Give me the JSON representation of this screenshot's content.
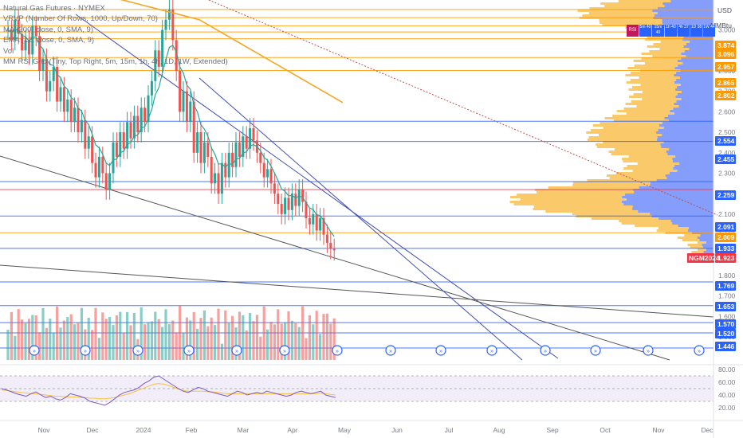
{
  "legend": {
    "lines": [
      "Natural Gas Futures · NYMEX",
      "VRVP (Number Of Rows, 1000, Up/Down, 70)",
      "MA (200, close, 0, SMA, 9)",
      "EMA (12, close, 0, SMA, 9)",
      "Vol",
      "MM RSI Grid (Tiny, Top Right, 5m, 15m, 1h, 4h, 1D, 1W, Extended)"
    ]
  },
  "units": {
    "currency": "USD",
    "unit": "MMBtu"
  },
  "rsi_grid": {
    "labels": [
      "RSI",
      "5m 40",
      "15m 40",
      "1h 40",
      "4h 37",
      "1D 38",
      "1W 44"
    ]
  },
  "ticker_tag": "NGM2024",
  "colors": {
    "up": "#26a69a",
    "down": "#ef5350",
    "ema": "#26a69a",
    "ma": "#f2a623",
    "level_blue": "#2962ff",
    "level_orange": "#ff9800",
    "level_red": "#f23645",
    "vp_orange": "#f9c35a",
    "vp_blue": "#5c7cfa",
    "rsi_line": "#7e57c2",
    "rsi_ma": "#f6c142"
  },
  "chart_data": [
    {
      "type": "line",
      "title": "Natural Gas Futures · NYMEX",
      "ylim": [
        1.4,
        3.1
      ],
      "x_ticks": [
        "Nov",
        "Dec",
        "2024",
        "Feb",
        "Mar",
        "Apr",
        "May",
        "Jun",
        "Jul",
        "Aug",
        "Sep",
        "Oct",
        "Nov",
        "Dec"
      ],
      "y_ticks": [
        1.5,
        1.6,
        1.7,
        1.8,
        1.9,
        2.0,
        2.1,
        2.2,
        2.3,
        2.4,
        2.5,
        2.6,
        2.7,
        2.8,
        2.9,
        3.0
      ],
      "price_labels": [
        {
          "value": "3.874",
          "color": "#ff9800"
        },
        {
          "value": "3.096",
          "color": "#ff9800"
        },
        {
          "value": "2.957",
          "color": "#ff9800"
        },
        {
          "value": "2.865",
          "color": "#ff9800"
        },
        {
          "value": "2.802",
          "color": "#ff9800"
        },
        {
          "value": "2.554",
          "color": "#2962ff"
        },
        {
          "value": "2.455",
          "color": "#2962ff"
        },
        {
          "value": "2.259",
          "color": "#2962ff"
        },
        {
          "value": "2.091",
          "color": "#2962ff"
        },
        {
          "value": "2.009",
          "color": "#ff9800"
        },
        {
          "value": "1.933",
          "color": "#2962ff"
        },
        {
          "value": "1.923",
          "color": "#f23645"
        },
        {
          "value": "1.769",
          "color": "#2962ff"
        },
        {
          "value": "1.653",
          "color": "#2962ff"
        },
        {
          "value": "1.570",
          "color": "#2962ff"
        },
        {
          "value": "1.520",
          "color": "#2962ff"
        },
        {
          "value": "1.446",
          "color": "#2962ff"
        }
      ],
      "levels": [
        {
          "y": 3.1,
          "color": "#ff9800"
        },
        {
          "y": 3.06,
          "color": "#ff9800"
        },
        {
          "y": 3.02,
          "color": "#ff9800"
        },
        {
          "y": 2.99,
          "color": "#ff9800"
        },
        {
          "y": 2.957,
          "color": "#ff9800"
        },
        {
          "y": 2.865,
          "color": "#ff9800"
        },
        {
          "y": 2.802,
          "color": "#ff9800"
        },
        {
          "y": 2.554,
          "color": "#2962ff"
        },
        {
          "y": 2.455,
          "color": "#2962ff"
        },
        {
          "y": 2.259,
          "color": "#2962ff"
        },
        {
          "y": 2.22,
          "color": "#f23645"
        },
        {
          "y": 2.091,
          "color": "#2962ff"
        },
        {
          "y": 2.009,
          "color": "#ff9800"
        },
        {
          "y": 1.933,
          "color": "#2962ff"
        },
        {
          "y": 1.769,
          "color": "#2962ff"
        },
        {
          "y": 1.653,
          "color": "#2962ff"
        },
        {
          "y": 1.57,
          "color": "#2962ff"
        },
        {
          "y": 1.52,
          "color": "#2962ff"
        },
        {
          "y": 1.446,
          "color": "#2962ff"
        }
      ],
      "close": [
        3.0,
        2.95,
        3.05,
        2.98,
        2.9,
        2.95,
        2.88,
        3.02,
        2.97,
        2.8,
        2.86,
        2.7,
        2.75,
        2.82,
        2.65,
        2.72,
        2.6,
        2.66,
        2.55,
        2.62,
        2.5,
        2.56,
        2.42,
        2.48,
        2.35,
        2.28,
        2.38,
        2.3,
        2.22,
        2.3,
        2.45,
        2.38,
        2.5,
        2.42,
        2.55,
        2.47,
        2.58,
        2.5,
        2.62,
        2.55,
        2.68,
        2.75,
        2.9,
        2.82,
        3.0,
        3.05,
        3.1,
        2.95,
        2.8,
        2.6,
        2.7,
        2.55,
        2.65,
        2.4,
        2.5,
        2.35,
        2.45,
        2.38,
        2.25,
        2.3,
        2.2,
        2.35,
        2.28,
        2.4,
        2.33,
        2.45,
        2.38,
        2.48,
        2.42,
        2.52,
        2.46,
        2.4,
        2.35,
        2.28,
        2.32,
        2.25,
        2.2,
        2.15,
        2.1,
        2.18,
        2.12,
        2.2,
        2.14,
        2.22,
        2.16,
        2.08,
        2.05,
        2.1,
        2.02,
        2.08,
        2.0,
        1.96,
        1.93,
        1.923
      ],
      "ma200": [
        3.15,
        3.14,
        3.13,
        3.12,
        3.11,
        3.1,
        3.09,
        3.08,
        3.07,
        3.06,
        3.05,
        3.04,
        3.03,
        3.02,
        3.01,
        3.0,
        2.99,
        2.98,
        2.97,
        2.96,
        2.95,
        2.94,
        2.93,
        2.92,
        2.91,
        2.9,
        2.89,
        2.88,
        2.87
      ],
      "series": [
        {
          "name": "VRVP",
          "type": "histogram"
        },
        {
          "name": "MA",
          "values_key": "ma200"
        },
        {
          "name": "EMA"
        },
        {
          "name": "Vol"
        }
      ]
    },
    {
      "type": "line",
      "title": "RSI",
      "ylim": [
        20,
        80
      ],
      "y_ticks": [
        20.0,
        40.0,
        60.0,
        80.0
      ],
      "rsi": [
        50,
        48,
        45,
        42,
        40,
        38,
        42,
        45,
        40,
        36,
        38,
        34,
        32,
        36,
        42,
        40,
        38,
        35,
        30,
        28,
        26,
        24,
        28,
        34,
        40,
        44,
        46,
        48,
        52,
        58,
        62,
        68,
        70,
        65,
        60,
        55,
        50,
        46,
        44,
        48,
        52,
        50,
        46,
        44,
        42,
        40,
        38,
        42,
        46,
        44,
        40,
        42,
        44,
        42,
        46,
        44,
        42,
        40,
        38,
        40,
        44,
        46,
        44,
        42,
        44,
        46,
        40,
        38,
        36
      ],
      "rsi_ma": [
        48,
        47,
        46,
        45,
        44,
        43,
        42,
        42,
        41,
        40,
        39,
        38,
        38,
        37,
        37,
        37,
        36,
        36,
        35,
        35,
        34,
        34,
        35,
        36,
        38,
        40,
        42,
        45,
        48,
        51,
        54,
        57,
        58,
        57,
        55,
        52,
        49,
        47,
        46,
        46,
        46,
        46,
        45,
        45,
        44,
        43,
        42,
        42,
        42,
        42,
        42,
        42,
        42,
        42,
        42,
        42,
        42,
        42,
        42,
        42,
        42,
        42,
        42,
        42,
        42,
        43,
        42,
        41,
        40
      ],
      "series": [
        {
          "name": "RSI"
        },
        {
          "name": "RSI-based MA"
        }
      ]
    }
  ]
}
